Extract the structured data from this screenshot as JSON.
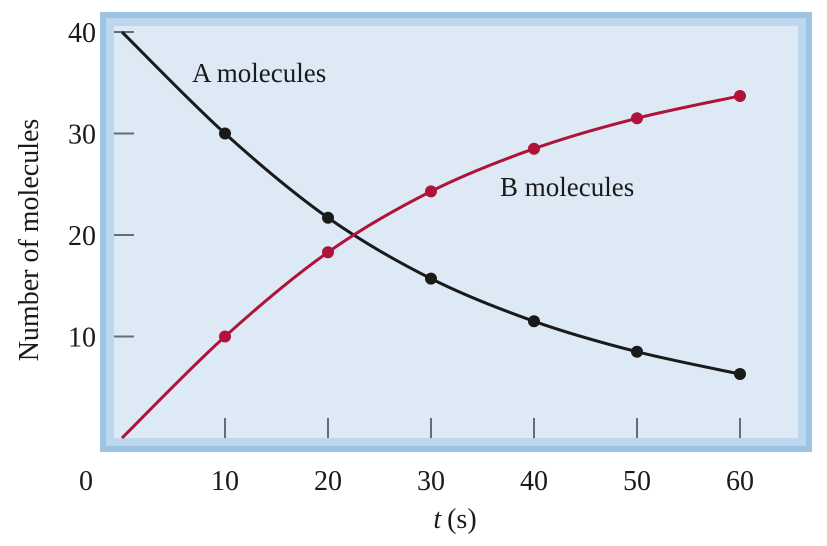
{
  "chart_data": {
    "type": "line",
    "xlabel_var": "t",
    "xlabel_unit": "(s)",
    "ylabel": "Number of molecules",
    "x": [
      0,
      10,
      20,
      30,
      40,
      50,
      60
    ],
    "x_tick_labels": [
      "0",
      "10",
      "20",
      "30",
      "40",
      "50",
      "60"
    ],
    "y_tick_labels": [
      "10",
      "20",
      "30",
      "40"
    ],
    "y_ticks": [
      10,
      20,
      30,
      40
    ],
    "xlim": [
      0,
      60
    ],
    "ylim": [
      0,
      40
    ],
    "grid": false,
    "series": [
      {
        "name": "A molecules",
        "color": "#1a1a1a",
        "values": [
          40,
          30,
          21.7,
          15.7,
          11.5,
          8.5,
          6.3
        ]
      },
      {
        "name": "B molecules",
        "color": "#b0123a",
        "values": [
          0,
          10,
          18.3,
          24.3,
          28.5,
          31.5,
          33.7
        ]
      }
    ],
    "colors": {
      "plot_background": "#dde9f5",
      "frame_outer": "#9cc4e2",
      "frame_inner": "#bcd7ee"
    }
  }
}
